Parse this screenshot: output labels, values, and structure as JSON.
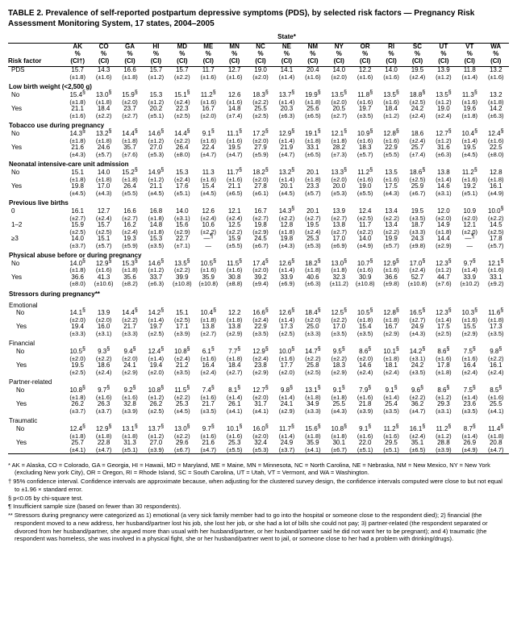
{
  "title": "TABLE 2. Prevalence of self-reported postpartum depressive symptoms (PDS), by selected risk factors — Pregnancy Risk Assessment Monitoring System, 17 states, 2004–2005",
  "state_label": "State*",
  "risk_factor_label": "Risk factor",
  "states": [
    "AK",
    "CO",
    "GA",
    "HI",
    "MD",
    "ME",
    "MN",
    "NC",
    "NE",
    "NM",
    "NY",
    "OR",
    "RI",
    "SC",
    "UT",
    "VT",
    "WA"
  ],
  "pct_label": "%",
  "ci_label": "(CI)",
  "ci_dagger": "(CI†)",
  "rows": [
    {
      "type": "data",
      "label": "PDS",
      "sup": "",
      "v": [
        "15.7",
        "14.3",
        "16.6",
        "15.7",
        "15.7",
        "11.7",
        "12.7",
        "19.0",
        "14.1",
        "20.4",
        "14.0",
        "12.2",
        "14.0",
        "19.5",
        "13.9",
        "11.8",
        "13.2"
      ],
      "c": [
        "(±1.8)",
        "(±1.6)",
        "(±1.8)",
        "(±1.2)",
        "(±2.2)",
        "(±1.6)",
        "(±1.6)",
        "(±2.0)",
        "(±1.4)",
        "(±1.6)",
        "(±2.0)",
        "(±1.6)",
        "(±1.6)",
        "(±2.4)",
        "(±1.2)",
        "(±1.4)",
        "(±1.6)"
      ]
    },
    {
      "type": "section",
      "label": "Low birth weight (<2,500 g)"
    },
    {
      "type": "data",
      "label": "No",
      "sup": "",
      "v": [
        "15.4§",
        "13.0§",
        "15.9§",
        "15.3",
        "15.1§",
        "11.2§",
        "12.6",
        "18.3§",
        "13.7§",
        "19.9§",
        "13.5§",
        "11.8§",
        "13.5§",
        "18.8§",
        "13.5§",
        "11.3§",
        "13.2"
      ],
      "c": [
        "(±1.8)",
        "(±1.8)",
        "(±2.0)",
        "(±1.2)",
        "(±2.4)",
        "(±1.6)",
        "(±1.6)",
        "(±2.2)",
        "(±1.4)",
        "(±1.8)",
        "(±2.0)",
        "(±1.6)",
        "(±1.6)",
        "(±2.5)",
        "(±1.2)",
        "(±1.6)",
        "(±1.8)"
      ]
    },
    {
      "type": "data",
      "label": "Yes",
      "sup": "",
      "v": [
        "21.1",
        "18.4",
        "23.7",
        "20.2",
        "22.3",
        "16.7",
        "14.8",
        "25.5",
        "20.3",
        "25.6",
        "20.5",
        "19.7",
        "18.4",
        "24.2",
        "19.0",
        "19.6",
        "14.2"
      ],
      "c": [
        "(±1.6)",
        "(±2.2)",
        "(±2.7)",
        "(±5.1)",
        "(±2.5)",
        "(±2.0)",
        "(±7.4)",
        "(±2.5)",
        "(±6.3)",
        "(±6.5)",
        "(±2.7)",
        "(±3.5)",
        "(±1.2)",
        "(±2.4)",
        "(±2.4)",
        "(±1.8)",
        "(±6.3)"
      ]
    },
    {
      "type": "section",
      "label": "Tobacco use during pregnancy"
    },
    {
      "type": "data",
      "label": "No",
      "sup": "",
      "v": [
        "14.3§",
        "13.2§",
        "14.4§",
        "14.6§",
        "14.4§",
        "9.1§",
        "11.1§",
        "17.2§",
        "12.9§",
        "19.1§",
        "12.1§",
        "10.9§",
        "12.8§",
        "18.6",
        "12.7§",
        "10.4§",
        "12.4§"
      ],
      "c": [
        "(±1.8)",
        "(±1.8)",
        "(±1.8)",
        "(±1.2)",
        "(±2.2)",
        "(±1.6)",
        "(±1.6)",
        "(±2.0)",
        "(±1.4)",
        "(±1.8)",
        "(±1.8)",
        "(±1.6)",
        "(±1.6)",
        "(±2.4)",
        "(±1.2)",
        "(±1.4)",
        "(±1.6)"
      ]
    },
    {
      "type": "data",
      "label": "Yes",
      "sup": "",
      "v": [
        "21.6",
        "24.6",
        "35.7",
        "27.0",
        "26.4",
        "22.4",
        "19.5",
        "27.9",
        "21.9",
        "33.1",
        "28.2",
        "18.3",
        "22.9",
        "25.7",
        "31.6",
        "19.5",
        "22.5"
      ],
      "c": [
        "(±4.3)",
        "(±5.7)",
        "(±7.6)",
        "(±5.3)",
        "(±8.0)",
        "(±4.7)",
        "(±4.7)",
        "(±5.9)",
        "(±4.7)",
        "(±6.5)",
        "(±7.3)",
        "(±5.7)",
        "(±5.5)",
        "(±7.4)",
        "(±6.3)",
        "(±4.5)",
        "(±8.0)"
      ]
    },
    {
      "type": "section",
      "label": "Neonatal intensive-care unit admission"
    },
    {
      "type": "data",
      "label": "No",
      "sup": "",
      "v": [
        "15.1",
        "14.0",
        "15.2§",
        "14.9§",
        "15.3",
        "11.3",
        "11.7§",
        "18.2§",
        "13.2§",
        "20.1",
        "13.3§",
        "11.2§",
        "13.5",
        "18.6§",
        "13.8",
        "11.2§",
        "12.8"
      ],
      "c": [
        "(±1.8)",
        "(±1.8)",
        "(±1.8)",
        "(±1.2)",
        "(±2.4)",
        "(±1.6)",
        "(±1.6)",
        "(±2.0)",
        "(±1.4)",
        "(±1.8)",
        "(±2.0)",
        "(±1.6)",
        "(±1.6)",
        "(±2.5)",
        "(±1.4)",
        "(±1.6)",
        "(±1.8)"
      ]
    },
    {
      "type": "data",
      "label": "Yes",
      "sup": "",
      "v": [
        "19.8",
        "17.0",
        "26.4",
        "21.1",
        "17.6",
        "15.4",
        "21.1",
        "27.8",
        "20.1",
        "23.3",
        "20.0",
        "19.0",
        "17.5",
        "25.9",
        "14.6",
        "19.2",
        "16.1"
      ],
      "c": [
        "(±4.5)",
        "(±4.3)",
        "(±5.5)",
        "(±4.5)",
        "(±5.1)",
        "(±4.5)",
        "(±6.5)",
        "(±6.1)",
        "(±4.5)",
        "(±5.7)",
        "(±5.3)",
        "(±5.5)",
        "(±4.3)",
        "(±6.7)",
        "(±3.1)",
        "(±5.1)",
        "(±4.9)"
      ]
    },
    {
      "type": "section",
      "label": "Previous live births"
    },
    {
      "type": "data",
      "label": "0",
      "sup": "",
      "v": [
        "16.1",
        "12.7",
        "16.6",
        "16.8",
        "14.0",
        "12.6",
        "12.1",
        "16.7",
        "14.3§",
        "20.1",
        "13.9",
        "12.4",
        "13.4",
        "19.5",
        "12.0",
        "10.9",
        "10.0§"
      ],
      "c": [
        "(±2.7)",
        "(±2.4)",
        "(±2.7)",
        "(±1.8)",
        "(±3.1)",
        "(±2.4)",
        "(±2.4)",
        "(±2.7)",
        "(±2.2)",
        "(±2.7)",
        "(±2.7)",
        "(±2.5)",
        "(±2.2)",
        "(±3.5)",
        "(±2.0)",
        "(±2.0)",
        "(±2.2)"
      ]
    },
    {
      "type": "data",
      "label": "1–2",
      "sup": "",
      "v": [
        "15.9",
        "15.7",
        "16.2",
        "14.8",
        "15.6",
        "10.6",
        "12.5",
        "19.8",
        "12.8",
        "19.5",
        "13.8",
        "11.7",
        "13.4",
        "18.7",
        "14.9",
        "12.1",
        "14.5"
      ],
      "c": [
        "(±2.5)",
        "(±2.5)",
        "(±2.4)",
        "(±1.8)",
        "(±2.9)",
        "(±2.2)",
        "(±2.2)",
        "(±2.9)",
        "(±1.8)",
        "(±2.4)",
        "(±2.7)",
        "(±2.2)",
        "(±2.2)",
        "(±3.3)",
        "(±1.8)",
        "(±2.0)",
        "(±2.5)"
      ]
    },
    {
      "type": "data",
      "label": "≥3",
      "sup": "",
      "v": [
        "14.0",
        "15.1",
        "19.3",
        "15.3",
        "22.7",
        "—¶",
        "15.9",
        "24.5",
        "19.8",
        "25.3",
        "17.0",
        "14.0",
        "19.9",
        "24.3",
        "14.4",
        "—¶",
        "17.8"
      ],
      "c": [
        "(±3.7)",
        "(±5.7)",
        "(±5.9)",
        "(±3.5)",
        "(±7.1)",
        "—",
        "(±5.5)",
        "(±6.7)",
        "(±4.3)",
        "(±5.3)",
        "(±6.9)",
        "(±4.9)",
        "(±5.7)",
        "(±9.8)",
        "(±2.9)",
        "—",
        "(±5.7)"
      ]
    },
    {
      "type": "section",
      "label": "Physical abuse before or during pregnancy"
    },
    {
      "type": "data",
      "label": "No",
      "sup": "",
      "v": [
        "14.0§",
        "12.9§",
        "15.3§",
        "14.6§",
        "13.5§",
        "10.5§",
        "11.5§",
        "17.4§",
        "12.6§",
        "18.2§",
        "13.0§",
        "10.7§",
        "12.9§",
        "17.0§",
        "12.3§",
        "9.7§",
        "12.1§"
      ],
      "c": [
        "(±1.8)",
        "(±1.6)",
        "(±1.8)",
        "(±1.2)",
        "(±2.2)",
        "(±1.6)",
        "(±1.6)",
        "(±2.0)",
        "(±1.4)",
        "(±1.8)",
        "(±1.8)",
        "(±1.6)",
        "(±1.6)",
        "(±2.4)",
        "(±1.2)",
        "(±1.4)",
        "(±1.6)"
      ]
    },
    {
      "type": "data",
      "label": "Yes",
      "sup": "",
      "v": [
        "36.6",
        "41.3",
        "35.6",
        "33.7",
        "39.9",
        "35.9",
        "30.8",
        "39.2",
        "33.9",
        "40.6",
        "32.3",
        "30.9",
        "36.6",
        "52.7",
        "44.7",
        "33.9",
        "33.1"
      ],
      "c": [
        "(±8.0)",
        "(±10.6)",
        "(±8.2)",
        "(±6.3)",
        "(±10.8)",
        "(±10.8)",
        "(±8.8)",
        "(±9.4)",
        "(±6.9)",
        "(±6.3)",
        "(±11.2)",
        "(±10.8)",
        "(±9.8)",
        "(±10.8)",
        "(±7.6)",
        "(±10.2)",
        "(±9.2)"
      ]
    },
    {
      "type": "section",
      "label": "Stressors during pregnancy**"
    },
    {
      "type": "subsection",
      "label": "  Emotional"
    },
    {
      "type": "data",
      "label": "No",
      "indent": 1,
      "v": [
        "14.1§",
        "13.9",
        "14.4§",
        "14.2§",
        "15.1",
        "10.4§",
        "12.2",
        "16.6§",
        "12.6§",
        "18.4§",
        "12.5§",
        "10.5§",
        "12.8§",
        "16.5§",
        "12.3§",
        "10.3§",
        "11.6§"
      ],
      "c": [
        "(±2.0)",
        "(±2.0)",
        "(±2.2)",
        "(±1.4)",
        "(±2.5)",
        "(±1.8)",
        "(±1.8)",
        "(±2.4)",
        "(±1.4)",
        "(±2.0)",
        "(±2.2)",
        "(±1.8)",
        "(±1.8)",
        "(±2.7)",
        "(±1.4)",
        "(±1.6)",
        "(±1.8)"
      ]
    },
    {
      "type": "data",
      "label": "Yes",
      "indent": 1,
      "v": [
        "19.4",
        "16.0",
        "21.7",
        "19.7",
        "17.1",
        "13.8",
        "13.8",
        "22.9",
        "17.3",
        "25.0",
        "17.0",
        "15.4",
        "16.7",
        "24.9",
        "17.5",
        "15.5",
        "17.3"
      ],
      "c": [
        "(±3.3)",
        "(±3.1)",
        "(±3.3)",
        "(±2.5)",
        "(±3.9)",
        "(±2.7)",
        "(±2.9)",
        "(±3.5)",
        "(±2.5)",
        "(±3.3)",
        "(±3.5)",
        "(±3.5)",
        "(±2.9)",
        "(±4.3)",
        "(±2.5)",
        "(±2.9)",
        "(±3.5)"
      ]
    },
    {
      "type": "subsection",
      "label": "  Financial"
    },
    {
      "type": "data",
      "label": "No",
      "indent": 1,
      "v": [
        "10.5§",
        "9.3§",
        "9.4§",
        "12.4§",
        "10.8§",
        "6.1§",
        "7.7§",
        "12.9§",
        "10.0§",
        "14.7§",
        "9.5§",
        "8.6§",
        "10.1§",
        "14.2§",
        "8.6§",
        "7.5§",
        "9.8§"
      ],
      "c": [
        "(±2.0)",
        "(±2.2)",
        "(±2.0)",
        "(±1.4)",
        "(±2.4)",
        "(±1.6)",
        "(±1.8)",
        "(±2.4)",
        "(±1.6)",
        "(±2.2)",
        "(±2.2)",
        "(±2.0)",
        "(±1.8)",
        "(±3.1)",
        "(±1.6)",
        "(±1.6)",
        "(±2.2)"
      ]
    },
    {
      "type": "data",
      "label": "Yes",
      "indent": 1,
      "v": [
        "19.5",
        "18.6",
        "24.1",
        "19.4",
        "21.2",
        "16.4",
        "18.4",
        "23.8",
        "17.7",
        "25.8",
        "18.3",
        "14.6",
        "18.1",
        "24.2",
        "17.8",
        "16.4",
        "16.1"
      ],
      "c": [
        "(±2.5)",
        "(±2.4)",
        "(±2.9)",
        "(±2.0)",
        "(±3.5)",
        "(±2.4)",
        "(±2.7)",
        "(±2.9)",
        "(±2.0)",
        "(±2.5)",
        "(±2.9)",
        "(±2.4)",
        "(±2.4)",
        "(±3.5)",
        "(±1.8)",
        "(±2.4)",
        "(±2.4)"
      ]
    },
    {
      "type": "subsection",
      "label": "  Partner-related"
    },
    {
      "type": "data",
      "label": "No",
      "indent": 1,
      "v": [
        "10.8§",
        "9.7§",
        "9.2§",
        "10.8§",
        "11.5§",
        "7.4§",
        "8.1§",
        "12.7§",
        "9.8§",
        "13.1§",
        "9.1§",
        "7.9§",
        "9.1§",
        "9.6§",
        "8.6§",
        "7.5§",
        "8.5§"
      ],
      "c": [
        "(±1.8)",
        "(±1.6)",
        "(±1.6)",
        "(±1.2)",
        "(±2.2)",
        "(±1.6)",
        "(±1.4)",
        "(±2.0)",
        "(±1.4)",
        "(±1.8)",
        "(±1.8)",
        "(±1.6)",
        "(±1.4)",
        "(±2.2)",
        "(±1.2)",
        "(±1.4)",
        "(±1.6)"
      ]
    },
    {
      "type": "data",
      "label": "Yes",
      "indent": 1,
      "v": [
        "26.2",
        "26.3",
        "32.8",
        "26.2",
        "25.3",
        "21.7",
        "26.1",
        "31.7",
        "24.1",
        "34.9",
        "25.5",
        "21.8",
        "25.4",
        "36.2",
        "29.3",
        "23.6",
        "25.5"
      ],
      "c": [
        "(±3.7)",
        "(±3.7)",
        "(±3.9)",
        "(±2.5)",
        "(±4.5)",
        "(±3.5)",
        "(±4.1)",
        "(±4.1)",
        "(±2.9)",
        "(±3.3)",
        "(±4.3)",
        "(±3.9)",
        "(±3.5)",
        "(±4.7)",
        "(±3.1)",
        "(±3.5)",
        "(±4.1)"
      ]
    },
    {
      "type": "subsection",
      "label": "  Traumatic"
    },
    {
      "type": "data",
      "label": "No",
      "indent": 1,
      "v": [
        "12.4§",
        "12.9§",
        "13.1§",
        "13.7§",
        "13.0§",
        "9.7§",
        "10.1§",
        "16.0§",
        "11.7§",
        "15.6§",
        "10.8§",
        "9.1§",
        "11.2§",
        "16.1§",
        "11.2§",
        "8.7§",
        "11.4§"
      ],
      "c": [
        "(±1.8)",
        "(±1.8)",
        "(±1.8)",
        "(±1.2)",
        "(±2.2)",
        "(±1.6)",
        "(±1.6)",
        "(±2.0)",
        "(±1.4)",
        "(±1.8)",
        "(±1.8)",
        "(±1.6)",
        "(±1.6)",
        "(±2.4)",
        "(±1.2)",
        "(±1.4)",
        "(±1.8)"
      ]
    },
    {
      "type": "data",
      "label": "Yes",
      "indent": 1,
      "v": [
        "25.7",
        "22.8",
        "31.3",
        "27.0",
        "29.6",
        "21.6",
        "25.3",
        "32.4",
        "24.9",
        "35.9",
        "30.1",
        "22.0",
        "29.5",
        "35.1",
        "28.8",
        "26.9",
        "20.8"
      ],
      "c": [
        "(±4.1)",
        "(±4.7)",
        "(±5.1)",
        "(±3.9)",
        "(±6.7)",
        "(±4.7)",
        "(±5.5)",
        "(±5.3)",
        "(±3.7)",
        "(±4.1)",
        "(±6.7)",
        "(±5.1)",
        "(±5.1)",
        "(±6.5)",
        "(±3.9)",
        "(±4.9)",
        "(±4.7)"
      ]
    }
  ],
  "footnotes": [
    "* AK = Alaska, CO = Colorado, GA = Georgia, HI = Hawaii, MD = Maryland, ME = Maine, MN = Minnesota, NC = North Carolina, NE = Nebraska, NM = New Mexico, NY = New York (excluding New york City), OR = Oregon, RI = Rhode Island, SC = South Carolina, UT = Utah, VT = Vermont, and WA = Washington.",
    "† 95% confidence interval. Confidence intervals are approximate because, when adjusting for the clustered survey design, the confidence intervals computed were close to but not equal to ±1.96 × standard error.",
    "§ p<0.05 by chi-square test.",
    "¶ Insufficient sample size (based on fewer than 30 respondents).",
    "** Stressors during pregnancy were categorized as 1) emotional (a very sick family member had to go into the hospital or someone close to the respondent died); 2) financial (the respondent moved to a new address, her husband/partner lost his job, she lost her job, or she had a lot of bills she could not pay; 3) partner-related (the respondent separated or divorced from her husband/partner, she argued more than usual with her husband/partner, or her husband/partner said he did not want her to be pregnant); and 4) traumatic (the respondent was homeless, she was involved in a physical fight, she or her husband/partner went to jail, or someone close to her had a problem with drinking/drugs)."
  ]
}
